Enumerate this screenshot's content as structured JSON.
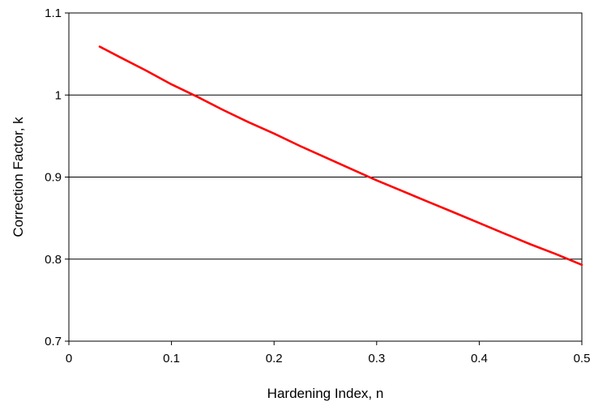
{
  "chart_data": {
    "type": "line",
    "title": "",
    "xlabel": "Hardening Index, n",
    "ylabel": "Correction Factor, k",
    "xlim": [
      0,
      0.5
    ],
    "ylim": [
      0.7,
      1.1
    ],
    "x_ticks": [
      0,
      0.1,
      0.2,
      0.3,
      0.4,
      0.5
    ],
    "x_tick_labels": [
      "0",
      "0.1",
      "0.2",
      "0.3",
      "0.4",
      "0.5"
    ],
    "y_ticks": [
      0.7,
      0.8,
      0.9,
      1.0,
      1.1
    ],
    "y_tick_labels": [
      "0.7",
      "0.8",
      "0.9",
      "1",
      "1.1"
    ],
    "grid": "horizontal",
    "series": [
      {
        "color": "#ff0000",
        "x": [
          0.03,
          0.05,
          0.075,
          0.1,
          0.125,
          0.15,
          0.175,
          0.2,
          0.225,
          0.25,
          0.275,
          0.3,
          0.325,
          0.35,
          0.375,
          0.4,
          0.425,
          0.45,
          0.475,
          0.5
        ],
        "y": [
          1.059,
          1.046,
          1.03,
          1.013,
          0.998,
          0.982,
          0.967,
          0.953,
          0.938,
          0.924,
          0.91,
          0.896,
          0.883,
          0.87,
          0.857,
          0.844,
          0.831,
          0.818,
          0.806,
          0.793
        ]
      }
    ]
  }
}
